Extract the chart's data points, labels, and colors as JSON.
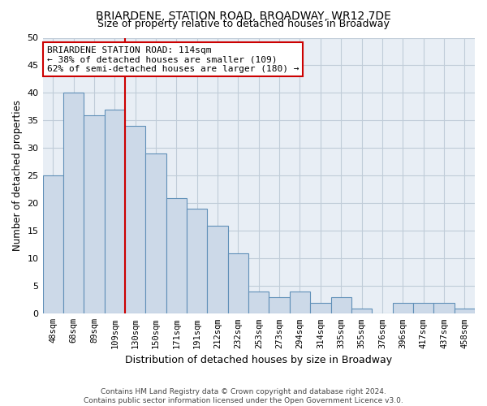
{
  "title": "BRIARDENE, STATION ROAD, BROADWAY, WR12 7DE",
  "subtitle": "Size of property relative to detached houses in Broadway",
  "xlabel": "Distribution of detached houses by size in Broadway",
  "ylabel": "Number of detached properties",
  "bar_labels": [
    "48sqm",
    "68sqm",
    "89sqm",
    "109sqm",
    "130sqm",
    "150sqm",
    "171sqm",
    "191sqm",
    "212sqm",
    "232sqm",
    "253sqm",
    "273sqm",
    "294sqm",
    "314sqm",
    "335sqm",
    "355sqm",
    "376sqm",
    "396sqm",
    "417sqm",
    "437sqm",
    "458sqm"
  ],
  "bar_values": [
    25,
    40,
    36,
    37,
    34,
    29,
    21,
    19,
    16,
    11,
    4,
    3,
    4,
    2,
    3,
    1,
    0,
    2,
    2,
    2,
    1
  ],
  "bar_color": "#ccd9e8",
  "bar_edge_color": "#6090b8",
  "ylim": [
    0,
    50
  ],
  "yticks": [
    0,
    5,
    10,
    15,
    20,
    25,
    30,
    35,
    40,
    45,
    50
  ],
  "vline_x": 3.5,
  "property_size": "114sqm",
  "pct_smaller": 38,
  "n_smaller": 109,
  "pct_larger": 62,
  "n_larger": 180,
  "vline_color": "#cc0000",
  "annotation_label": "BRIARDENE STATION ROAD: 114sqm",
  "footer_line1": "Contains HM Land Registry data © Crown copyright and database right 2024.",
  "footer_line2": "Contains public sector information licensed under the Open Government Licence v3.0.",
  "background_color": "#ffffff",
  "grid_color": "#c0ccd8",
  "title_fontsize": 10,
  "subtitle_fontsize": 9
}
